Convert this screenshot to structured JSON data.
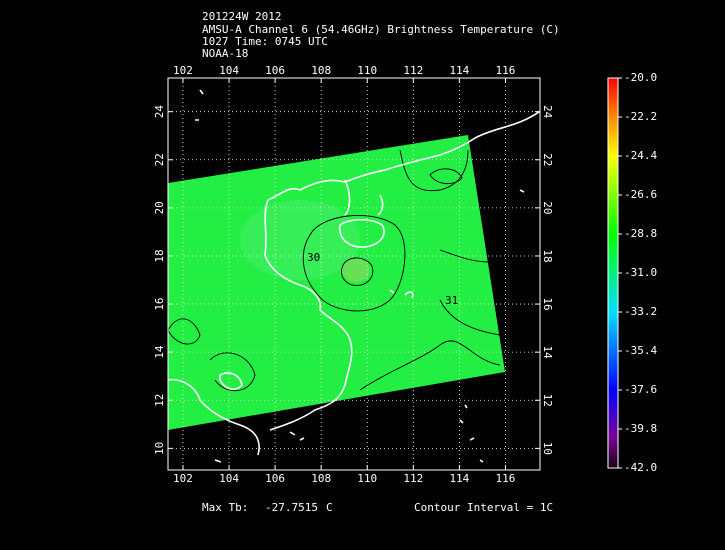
{
  "header": {
    "lines": [
      "201224W 2012",
      "AMSU-A Channel 6 (54.46GHz) Brightness Temperature (C)",
      "1027 Time: 0745 UTC",
      "NOAA-18"
    ]
  },
  "map": {
    "lon_range": [
      101.35,
      117.5
    ],
    "lat_range": [
      9.1,
      25.4
    ],
    "lon_ticks": [
      102,
      104,
      106,
      108,
      110,
      112,
      114,
      116
    ],
    "lat_ticks": [
      10,
      12,
      14,
      16,
      18,
      20,
      22,
      24
    ],
    "contour_labels": [
      "30",
      "31"
    ]
  },
  "colorbar": {
    "range": [
      -42,
      -20
    ],
    "ticks": [
      {
        "value": -20,
        "label": "-20.0"
      },
      -22.2,
      -24.4,
      -26.6,
      -28.8,
      {
        "value": -31,
        "label": "-31.0"
      },
      -33.2,
      -35.4,
      -37.6,
      -39.8,
      {
        "value": -42,
        "label": "-42.0"
      }
    ]
  },
  "footer": {
    "max_label": "Max Tb:",
    "max_value": "-27.7515",
    "max_unit": "C",
    "contour_interval": "Contour Interval = 1C"
  }
}
